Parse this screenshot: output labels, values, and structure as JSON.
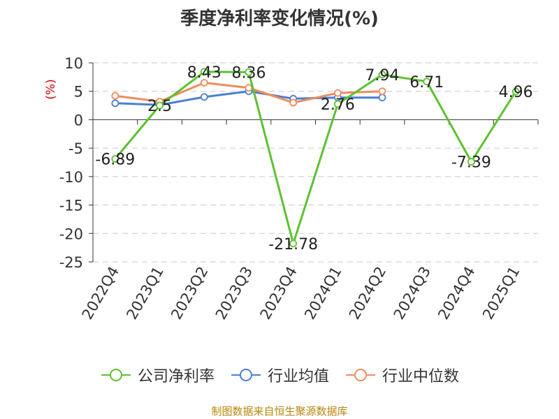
{
  "chart_data": {
    "type": "line",
    "title": "季度净利率变化情况(%)",
    "ylabel": "(%)",
    "xlabel": "",
    "categories": [
      "2022Q4",
      "2023Q1",
      "2023Q2",
      "2023Q3",
      "2023Q4",
      "2024Q1",
      "2024Q2",
      "2024Q3",
      "2024Q4",
      "2025Q1"
    ],
    "ylim": [
      -25,
      10
    ],
    "yticks": [
      "10",
      "5",
      "0",
      "-5",
      "-10",
      "-15",
      "-20",
      "-25"
    ],
    "grid": true,
    "legend_position": "bottom",
    "series": [
      {
        "name": "公司净利率",
        "color": "#5cc22f",
        "values": [
          -6.89,
          2.5,
          8.43,
          8.36,
          -21.78,
          2.76,
          7.94,
          6.71,
          -7.39,
          4.96
        ],
        "labels": [
          "-6.89",
          "2.5",
          "8.43",
          "8.36",
          "-21.78",
          "2.76",
          "7.94",
          "6.71",
          "-7.39",
          "4.96"
        ]
      },
      {
        "name": "行业均值",
        "color": "#4a7fd4",
        "values": [
          2.9,
          2.6,
          4.0,
          5.0,
          3.7,
          3.9,
          3.9,
          null,
          null,
          null
        ]
      },
      {
        "name": "行业中位数",
        "color": "#f08c5a",
        "values": [
          4.2,
          3.2,
          6.5,
          5.6,
          3.0,
          4.7,
          5.0,
          null,
          null,
          null
        ]
      }
    ]
  },
  "source": "制图数据来自恒生聚源数据库"
}
